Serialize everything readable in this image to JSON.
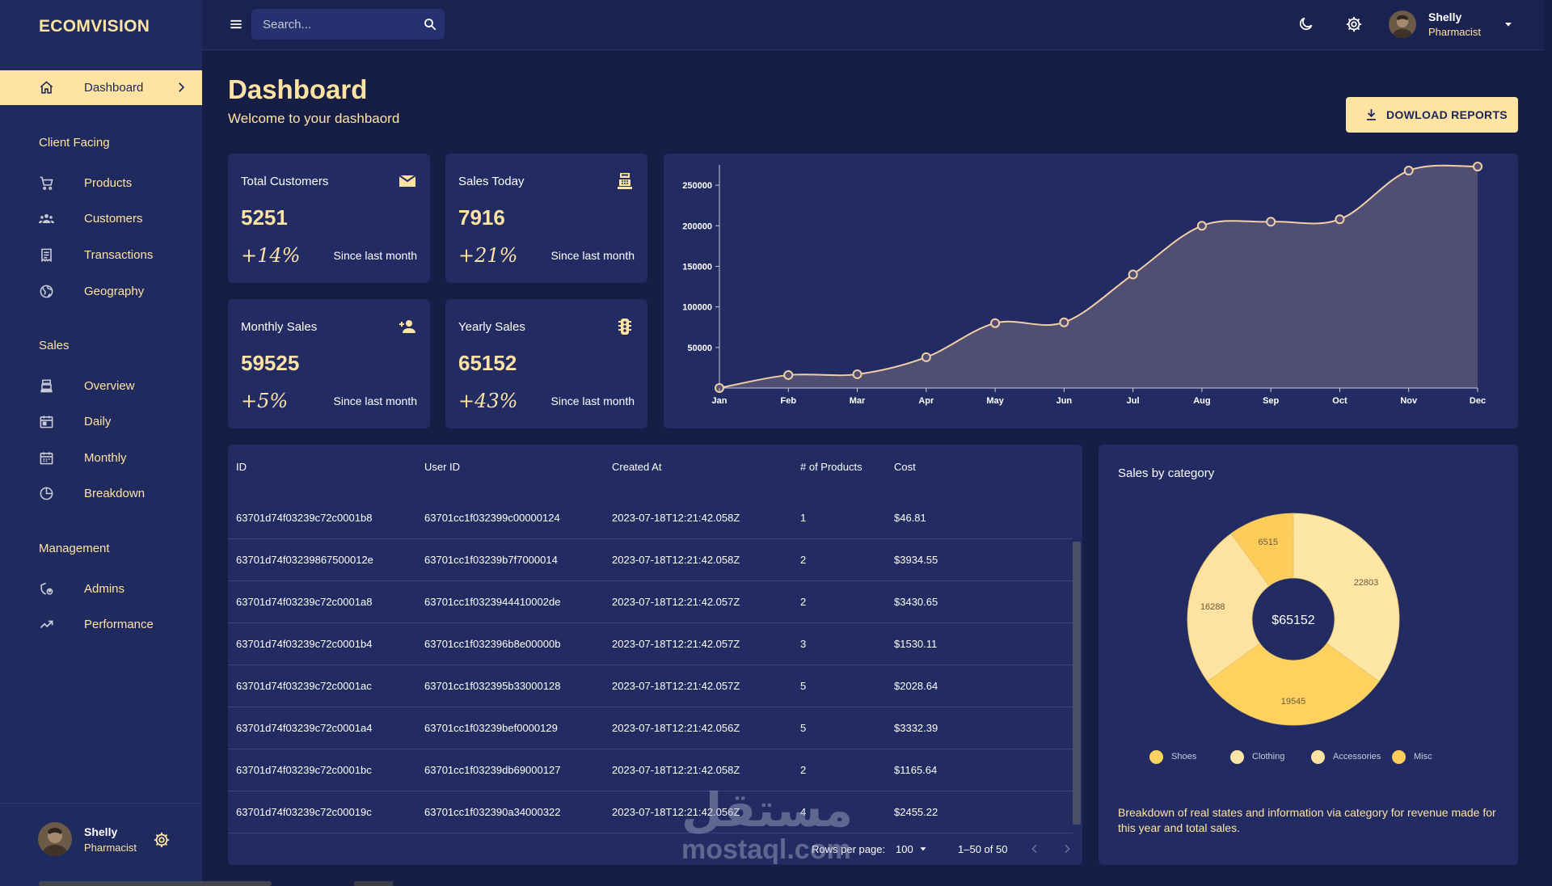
{
  "app": {
    "logo": "ECOMVISION"
  },
  "sidebar": {
    "active": {
      "label": "Dashboard"
    },
    "sections": [
      {
        "title": "Client Facing",
        "items": [
          "Products",
          "Customers",
          "Transactions",
          "Geography"
        ]
      },
      {
        "title": "Sales",
        "items": [
          "Overview",
          "Daily",
          "Monthly",
          "Breakdown"
        ]
      },
      {
        "title": "Management",
        "items": [
          "Admins",
          "Performance"
        ]
      }
    ],
    "user": {
      "name": "Shelly",
      "role": "Pharmacist"
    }
  },
  "topbar": {
    "search_placeholder": "Search...",
    "user": {
      "name": "Shelly",
      "role": "Pharmacist"
    }
  },
  "header": {
    "title": "Dashboard",
    "subtitle": "Welcome to your dashbaord",
    "download_label": "DOWLOAD REPORTS"
  },
  "stats": [
    {
      "title": "Total Customers",
      "value": "5251",
      "change": "+14%",
      "since": "Since last month",
      "icon": "mail-icon"
    },
    {
      "title": "Sales Today",
      "value": "7916",
      "change": "+21%",
      "since": "Since last month",
      "icon": "point-of-sale-icon"
    },
    {
      "title": "Monthly Sales",
      "value": "59525",
      "change": "+5%",
      "since": "Since last month",
      "icon": "person-add-icon"
    },
    {
      "title": "Yearly Sales",
      "value": "65152",
      "change": "+43%",
      "since": "Since last month",
      "icon": "traffic-icon"
    }
  ],
  "chart_data": [
    {
      "type": "area",
      "title": "",
      "xlabel": "",
      "ylabel": "",
      "categories": [
        "Jan",
        "Feb",
        "Mar",
        "Apr",
        "May",
        "Jun",
        "Jul",
        "Aug",
        "Sep",
        "Oct",
        "Nov",
        "Dec"
      ],
      "values": [
        0,
        16000,
        17000,
        38000,
        80000,
        81000,
        140000,
        200000,
        205000,
        208000,
        268000,
        273000
      ],
      "yticks": [
        50000,
        100000,
        150000,
        200000,
        250000
      ],
      "ylim": [
        0,
        275000
      ],
      "grid": false,
      "colors": {
        "line": "#f3cfa8",
        "fill": "#504e73"
      }
    },
    {
      "type": "pie",
      "title": "Sales by category",
      "center_label": "$65152",
      "categories": [
        "Shoes",
        "Clothing",
        "Accessories",
        "Misc"
      ],
      "values": [
        22803,
        19545,
        16288,
        6515
      ],
      "colors": [
        "#fee6a6",
        "#fdd25e",
        "#fee2a1",
        "#fdcd5b"
      ]
    }
  ],
  "table": {
    "columns": [
      "ID",
      "User ID",
      "Created At",
      "# of Products",
      "Cost"
    ],
    "rows": [
      [
        "63701d74f03239c72c0001b8",
        "63701cc1f032399c00000124",
        "2023-07-18T12:21:42.058Z",
        "1",
        "$46.81"
      ],
      [
        "63701d74f03239867500012e",
        "63701cc1f03239b7f7000014",
        "2023-07-18T12:21:42.058Z",
        "2",
        "$3934.55"
      ],
      [
        "63701d74f03239c72c0001a8",
        "63701cc1f0323944410002de",
        "2023-07-18T12:21:42.057Z",
        "2",
        "$3430.65"
      ],
      [
        "63701d74f03239c72c0001b4",
        "63701cc1f032396b8e00000b",
        "2023-07-18T12:21:42.057Z",
        "3",
        "$1530.11"
      ],
      [
        "63701d74f03239c72c0001ac",
        "63701cc1f032395b33000128",
        "2023-07-18T12:21:42.057Z",
        "5",
        "$2028.64"
      ],
      [
        "63701d74f03239c72c0001a4",
        "63701cc1f03239bef0000129",
        "2023-07-18T12:21:42.056Z",
        "5",
        "$3332.39"
      ],
      [
        "63701d74f03239c72c0001bc",
        "63701cc1f03239db69000127",
        "2023-07-18T12:21:42.058Z",
        "2",
        "$1165.64"
      ],
      [
        "63701d74f03239c72c00019c",
        "63701cc1f032390a34000322",
        "2023-07-18T12:21:42.056Z",
        "4",
        "$2455.22"
      ]
    ],
    "footer": {
      "rows_per_page_label": "Rows per page:",
      "rows_per_page": "100",
      "range": "1–50 of 50"
    }
  },
  "pie_card": {
    "description": "Breakdown of real states and information via category for revenue made for this year and total sales."
  },
  "watermark": {
    "arabic": "مستقل",
    "latin": "mostaql.com"
  },
  "theme": {
    "accent": "#ffe3a3",
    "background": "#161e45",
    "panel": "#222c63",
    "sidebar": "#1f2a5e"
  }
}
